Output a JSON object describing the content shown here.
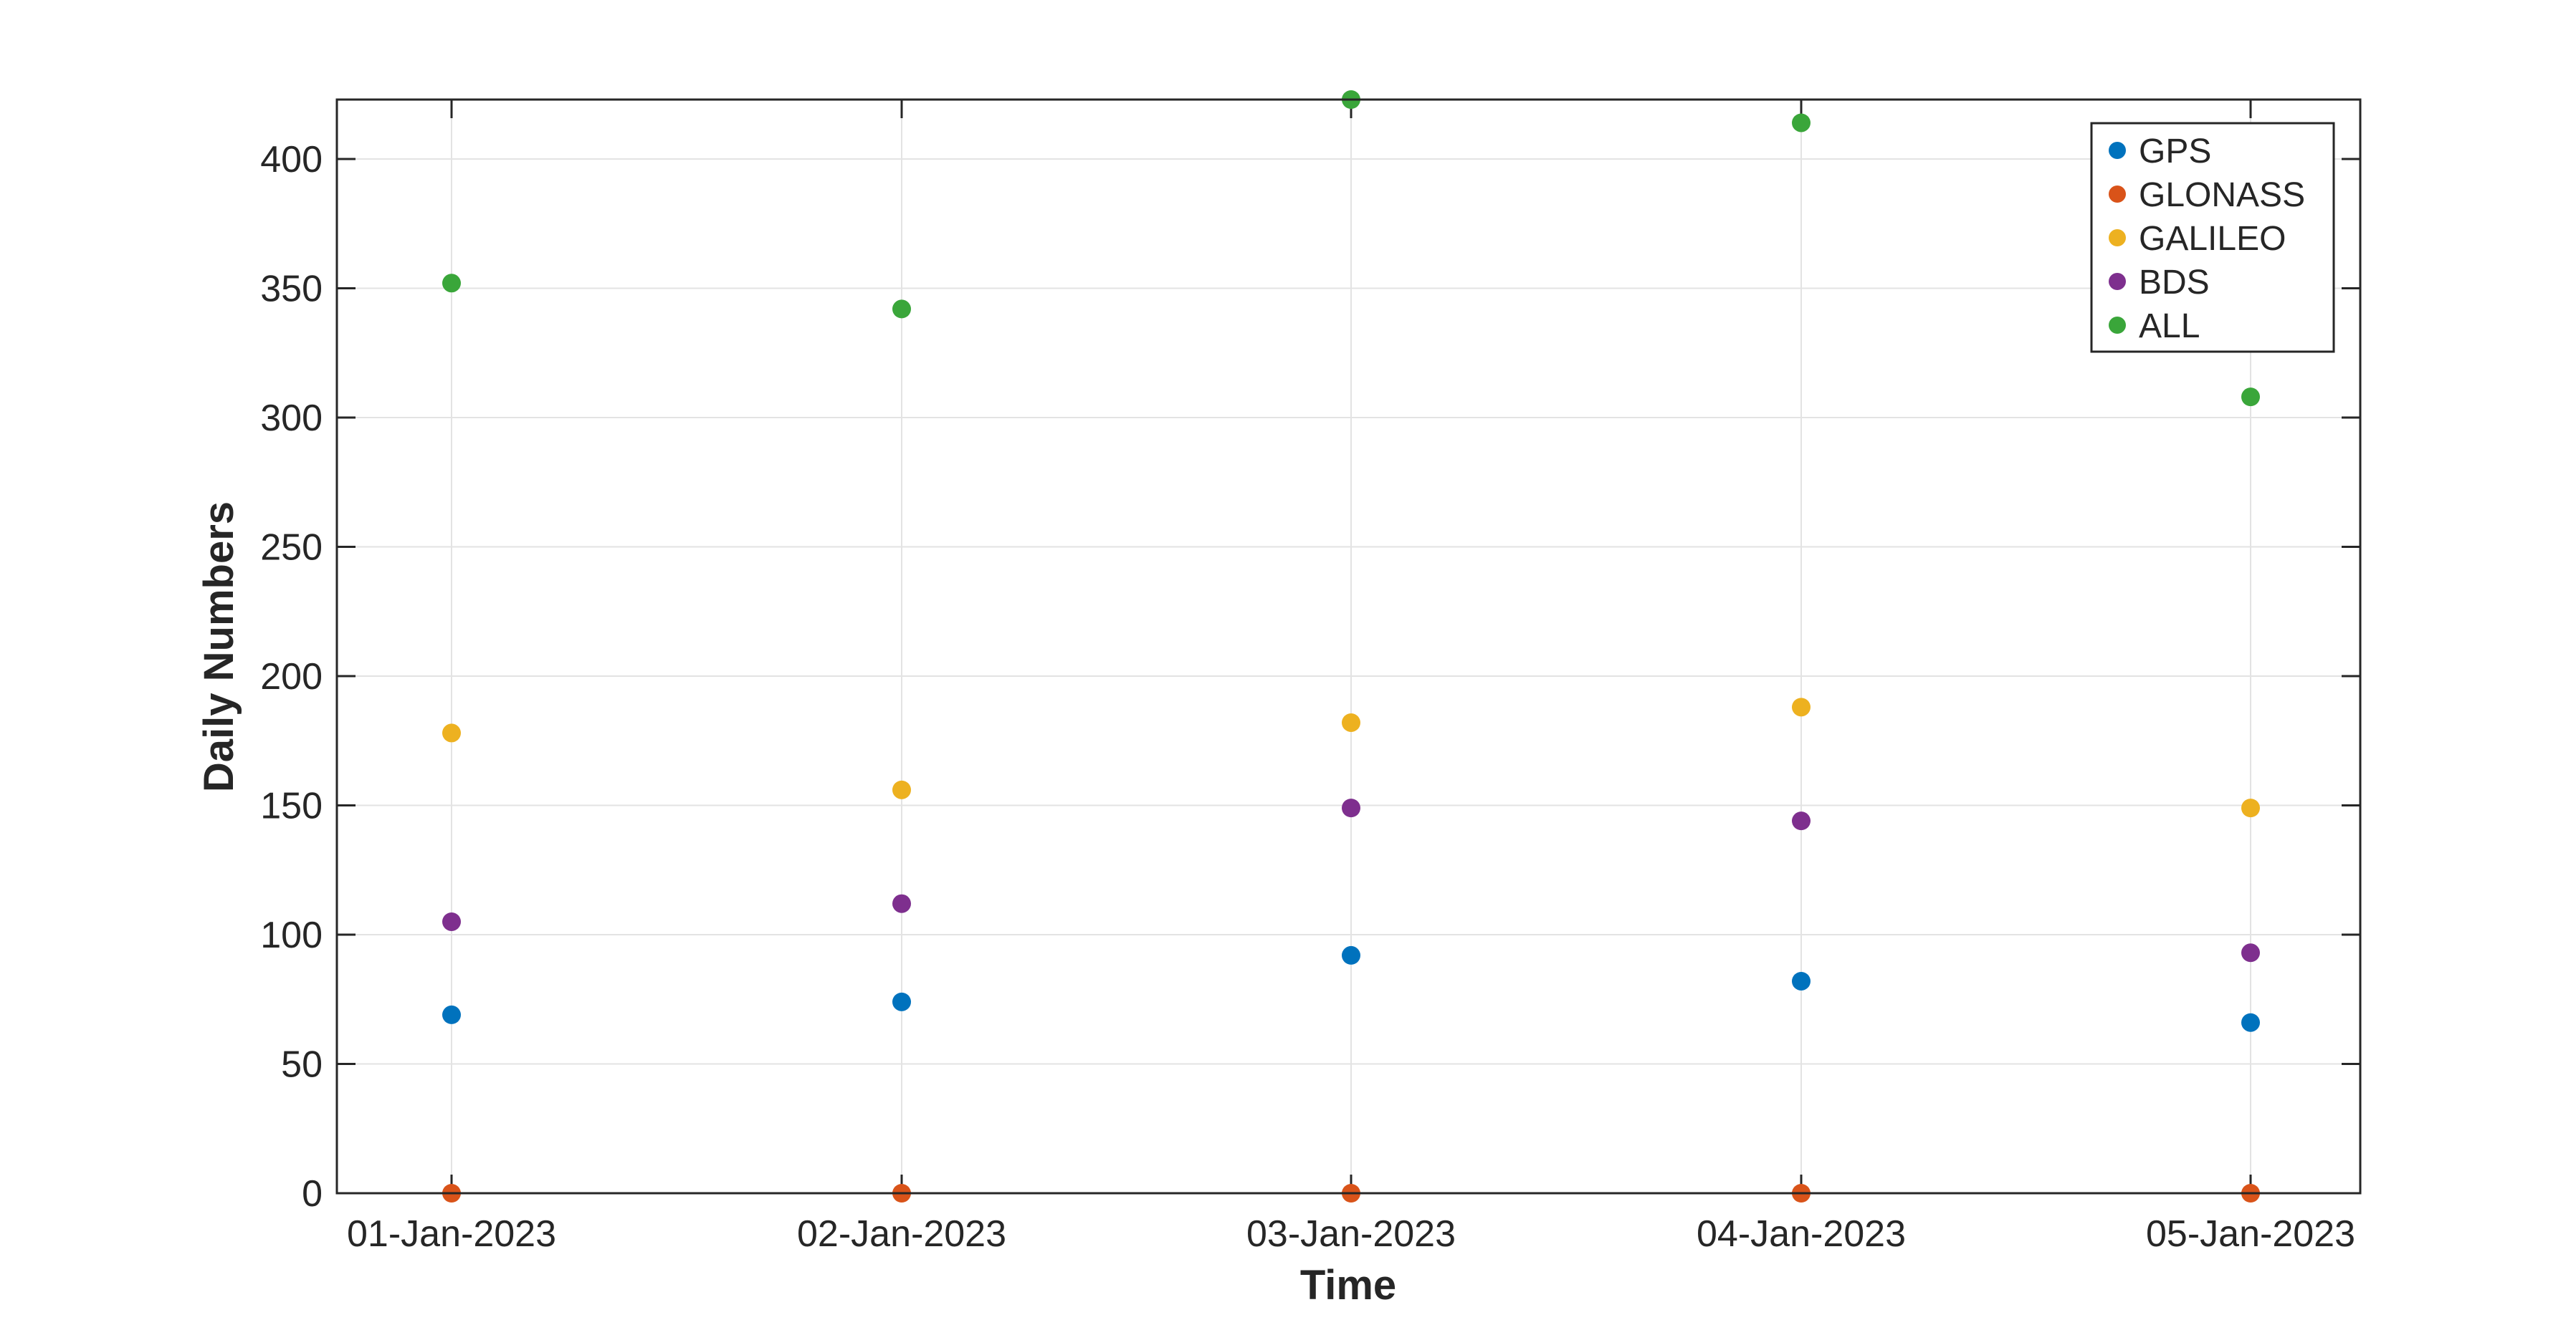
{
  "chart_data": {
    "type": "scatter",
    "xlabel": "Time",
    "ylabel": "Daily Numbers",
    "categories": [
      "01-Jan-2023",
      "02-Jan-2023",
      "03-Jan-2023",
      "04-Jan-2023",
      "05-Jan-2023"
    ],
    "xlim": [
      "01-Jan-2023",
      "05-Jan-2023"
    ],
    "ylim": [
      0,
      423
    ],
    "yticks": [
      0,
      50,
      100,
      150,
      200,
      250,
      300,
      350,
      400
    ],
    "grid": true,
    "legend_position": "top-right",
    "series": [
      {
        "name": "GPS",
        "color": "#0072BD",
        "values": [
          69,
          74,
          92,
          82,
          66
        ]
      },
      {
        "name": "GLONASS",
        "color": "#D95319",
        "values": [
          0,
          0,
          0,
          0,
          0
        ]
      },
      {
        "name": "GALILEO",
        "color": "#EDB120",
        "values": [
          178,
          156,
          182,
          188,
          149
        ]
      },
      {
        "name": "BDS",
        "color": "#7E2F8E",
        "values": [
          105,
          112,
          149,
          144,
          93
        ]
      },
      {
        "name": "ALL",
        "color": "#3AA63A",
        "values": [
          352,
          342,
          423,
          414,
          308
        ]
      }
    ]
  }
}
